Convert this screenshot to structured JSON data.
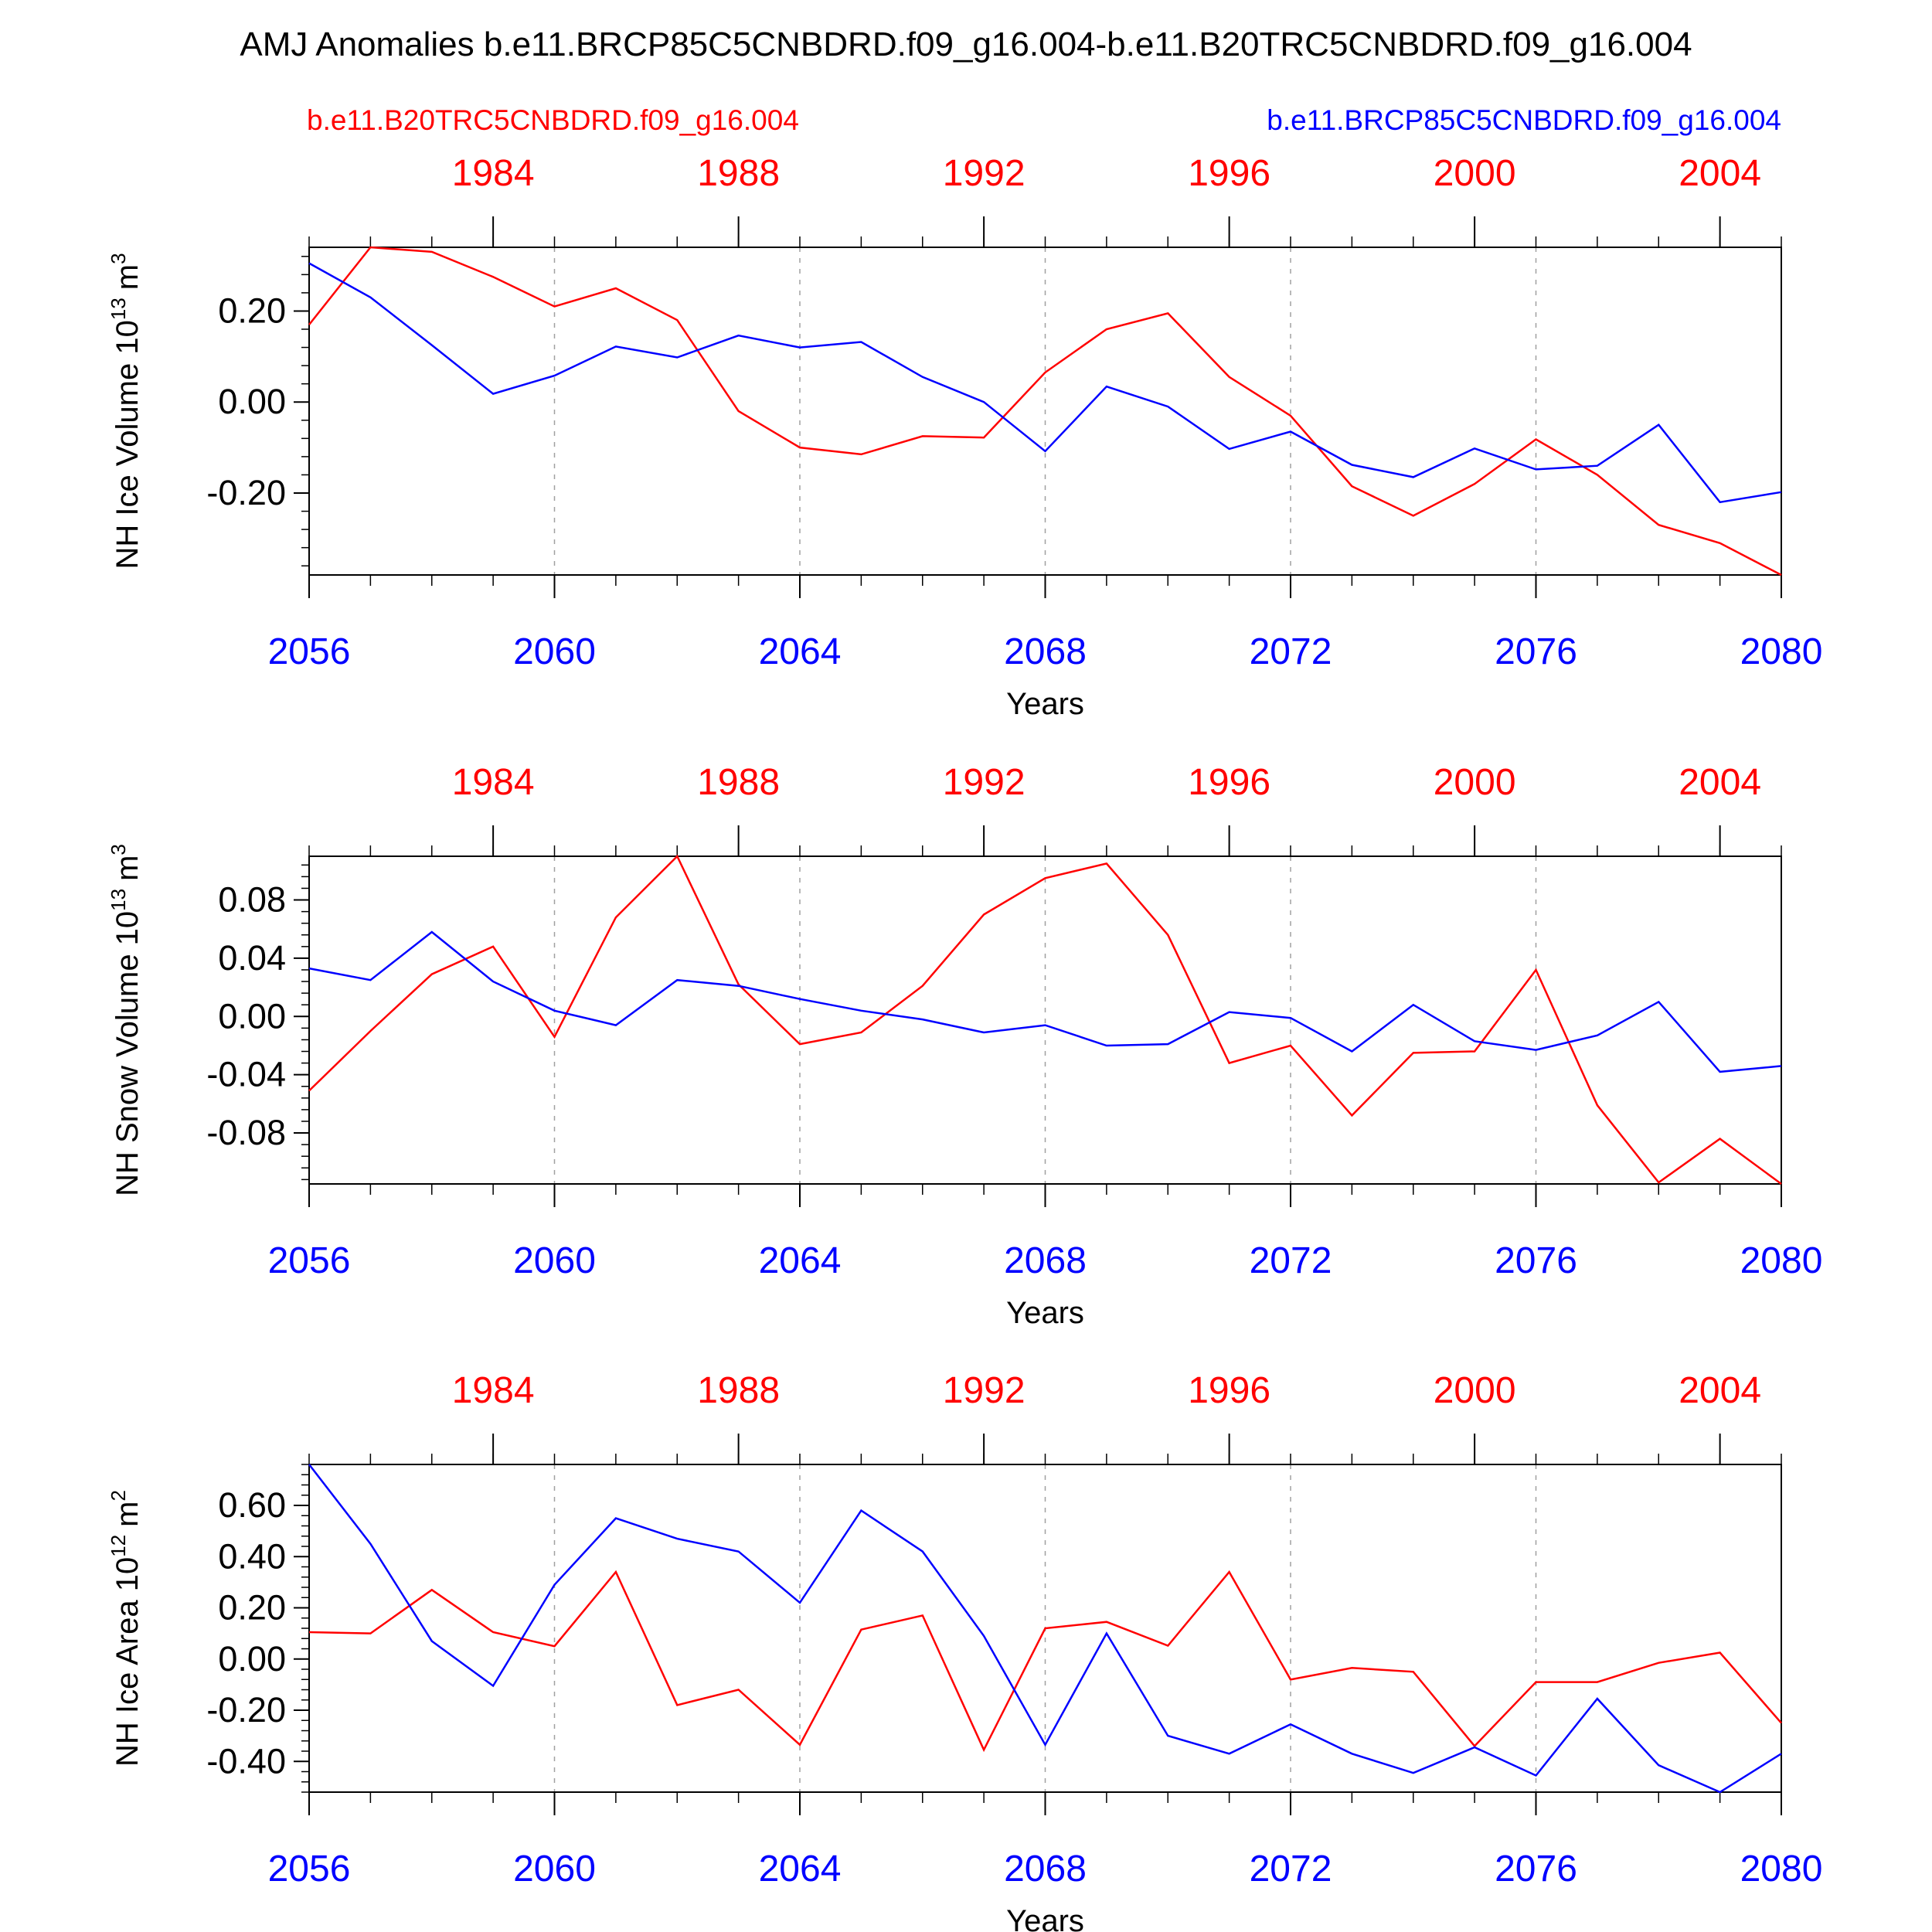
{
  "title": "AMJ Anomalies b.e11.BRCP85C5CNBDRD.f09_g16.004-b.e11.B20TRC5CNBDRD.f09_g16.004",
  "legend": {
    "left": "b.e11.B20TRC5CNBDRD.f09_g16.004",
    "right": "b.e11.BRCP85C5CNBDRD.f09_g16.004"
  },
  "colors": {
    "red_series": "#ff0000",
    "blue_series": "#0000ff",
    "axis": "#000000",
    "grid": "#a0a0a0"
  },
  "chart_data": [
    {
      "type": "line",
      "ylabel": "NH Ice Volume 10",
      "ylabel_exp": "13",
      "ylabel_unit": "m",
      "ylabel_unit_exp": "3",
      "xlabel": "Years",
      "ylim": [
        -0.38,
        0.34
      ],
      "yticks": [
        -0.2,
        0.0,
        0.2
      ],
      "ytick_labels": [
        "-0.20",
        "0.00",
        "0.20"
      ],
      "xlim": [
        2056,
        2080
      ],
      "bottom_ticks": [
        2056,
        2060,
        2064,
        2068,
        2072,
        2076,
        2080
      ],
      "bottom_tick_labels": [
        "2056",
        "2060",
        "2064",
        "2068",
        "2072",
        "2076",
        "2080"
      ],
      "top_ticks": [
        1984,
        1988,
        1992,
        1996,
        2000,
        2004
      ],
      "top_tick_labels": [
        "1984",
        "1988",
        "1992",
        "1996",
        "2000",
        "2004"
      ],
      "grid_x": [
        2060,
        2064,
        2068,
        2072,
        2076
      ],
      "x": [
        2056,
        2057,
        2058,
        2059,
        2060,
        2061,
        2062,
        2063,
        2064,
        2065,
        2066,
        2067,
        2068,
        2069,
        2070,
        2071,
        2072,
        2073,
        2074,
        2075,
        2076,
        2077,
        2078,
        2079,
        2080
      ],
      "series": [
        {
          "color": "red",
          "values": [
            0.17,
            0.34,
            0.33,
            0.275,
            0.21,
            0.25,
            0.18,
            -0.02,
            -0.1,
            -0.115,
            -0.075,
            -0.078,
            0.065,
            0.16,
            0.195,
            0.055,
            -0.03,
            -0.185,
            -0.25,
            -0.18,
            -0.082,
            -0.16,
            -0.27,
            -0.31,
            -0.38
          ]
        },
        {
          "color": "blue",
          "values": [
            0.305,
            0.23,
            0.125,
            0.018,
            0.058,
            0.122,
            0.098,
            0.146,
            0.12,
            0.132,
            0.055,
            0.0,
            -0.108,
            0.034,
            -0.01,
            -0.103,
            -0.065,
            -0.138,
            -0.165,
            -0.102,
            -0.148,
            -0.14,
            -0.05,
            -0.22,
            -0.198
          ]
        }
      ]
    },
    {
      "type": "line",
      "ylabel": "NH Snow Volume 10",
      "ylabel_exp": "13",
      "ylabel_unit": "m",
      "ylabel_unit_exp": "3",
      "xlabel": "Years",
      "ylim": [
        -0.115,
        0.11
      ],
      "yticks": [
        -0.08,
        -0.04,
        0.0,
        0.04,
        0.08
      ],
      "ytick_labels": [
        "-0.08",
        "-0.04",
        "0.00",
        "0.04",
        "0.08"
      ],
      "xlim": [
        2056,
        2080
      ],
      "bottom_ticks": [
        2056,
        2060,
        2064,
        2068,
        2072,
        2076,
        2080
      ],
      "bottom_tick_labels": [
        "2056",
        "2060",
        "2064",
        "2068",
        "2072",
        "2076",
        "2080"
      ],
      "top_ticks": [
        1984,
        1988,
        1992,
        1996,
        2000,
        2004
      ],
      "top_tick_labels": [
        "1984",
        "1988",
        "1992",
        "1996",
        "2000",
        "2004"
      ],
      "grid_x": [
        2060,
        2064,
        2068,
        2072,
        2076
      ],
      "x": [
        2056,
        2057,
        2058,
        2059,
        2060,
        2061,
        2062,
        2063,
        2064,
        2065,
        2066,
        2067,
        2068,
        2069,
        2070,
        2071,
        2072,
        2073,
        2074,
        2075,
        2076,
        2077,
        2078,
        2079,
        2080
      ],
      "series": [
        {
          "color": "red",
          "values": [
            -0.051,
            -0.01,
            0.029,
            0.048,
            -0.014,
            0.068,
            0.11,
            0.022,
            -0.019,
            -0.011,
            0.021,
            0.07,
            0.095,
            0.105,
            0.056,
            -0.032,
            -0.02,
            -0.068,
            -0.025,
            -0.024,
            0.032,
            -0.061,
            -0.114,
            -0.084,
            -0.115
          ]
        },
        {
          "color": "blue",
          "values": [
            0.033,
            0.025,
            0.058,
            0.024,
            0.004,
            -0.006,
            0.025,
            0.021,
            0.012,
            0.004,
            -0.002,
            -0.011,
            -0.006,
            -0.02,
            -0.019,
            0.003,
            -0.001,
            -0.024,
            0.008,
            -0.017,
            -0.023,
            -0.013,
            0.01,
            -0.038,
            -0.034
          ]
        }
      ]
    },
    {
      "type": "line",
      "ylabel": "NH Ice Area 10",
      "ylabel_exp": "12",
      "ylabel_unit": "m",
      "ylabel_unit_exp": "2",
      "xlabel": "Years",
      "ylim": [
        -0.52,
        0.76
      ],
      "yticks": [
        -0.4,
        -0.2,
        0.0,
        0.2,
        0.4,
        0.6
      ],
      "ytick_labels": [
        "-0.40",
        "-0.20",
        "0.00",
        "0.20",
        "0.40",
        "0.60"
      ],
      "xlim": [
        2056,
        2080
      ],
      "bottom_ticks": [
        2056,
        2060,
        2064,
        2068,
        2072,
        2076,
        2080
      ],
      "bottom_tick_labels": [
        "2056",
        "2060",
        "2064",
        "2068",
        "2072",
        "2076",
        "2080"
      ],
      "top_ticks": [
        1984,
        1988,
        1992,
        1996,
        2000,
        2004
      ],
      "top_tick_labels": [
        "1984",
        "1988",
        "1992",
        "1996",
        "2000",
        "2004"
      ],
      "grid_x": [
        2060,
        2064,
        2068,
        2072,
        2076
      ],
      "x": [
        2056,
        2057,
        2058,
        2059,
        2060,
        2061,
        2062,
        2063,
        2064,
        2065,
        2066,
        2067,
        2068,
        2069,
        2070,
        2071,
        2072,
        2073,
        2074,
        2075,
        2076,
        2077,
        2078,
        2079,
        2080
      ],
      "series": [
        {
          "color": "red",
          "values": [
            0.105,
            0.1,
            0.27,
            0.105,
            0.05,
            0.34,
            -0.18,
            -0.12,
            -0.335,
            0.115,
            0.17,
            -0.355,
            0.12,
            0.145,
            0.052,
            0.34,
            -0.08,
            -0.035,
            -0.05,
            -0.34,
            -0.09,
            -0.09,
            -0.015,
            0.025,
            -0.25
          ]
        },
        {
          "color": "blue",
          "values": [
            0.76,
            0.45,
            0.07,
            -0.105,
            0.29,
            0.55,
            0.47,
            0.42,
            0.22,
            0.58,
            0.42,
            0.09,
            -0.335,
            0.1,
            -0.3,
            -0.37,
            -0.255,
            -0.37,
            -0.445,
            -0.345,
            -0.455,
            -0.155,
            -0.415,
            -0.52,
            -0.37
          ]
        }
      ]
    }
  ]
}
